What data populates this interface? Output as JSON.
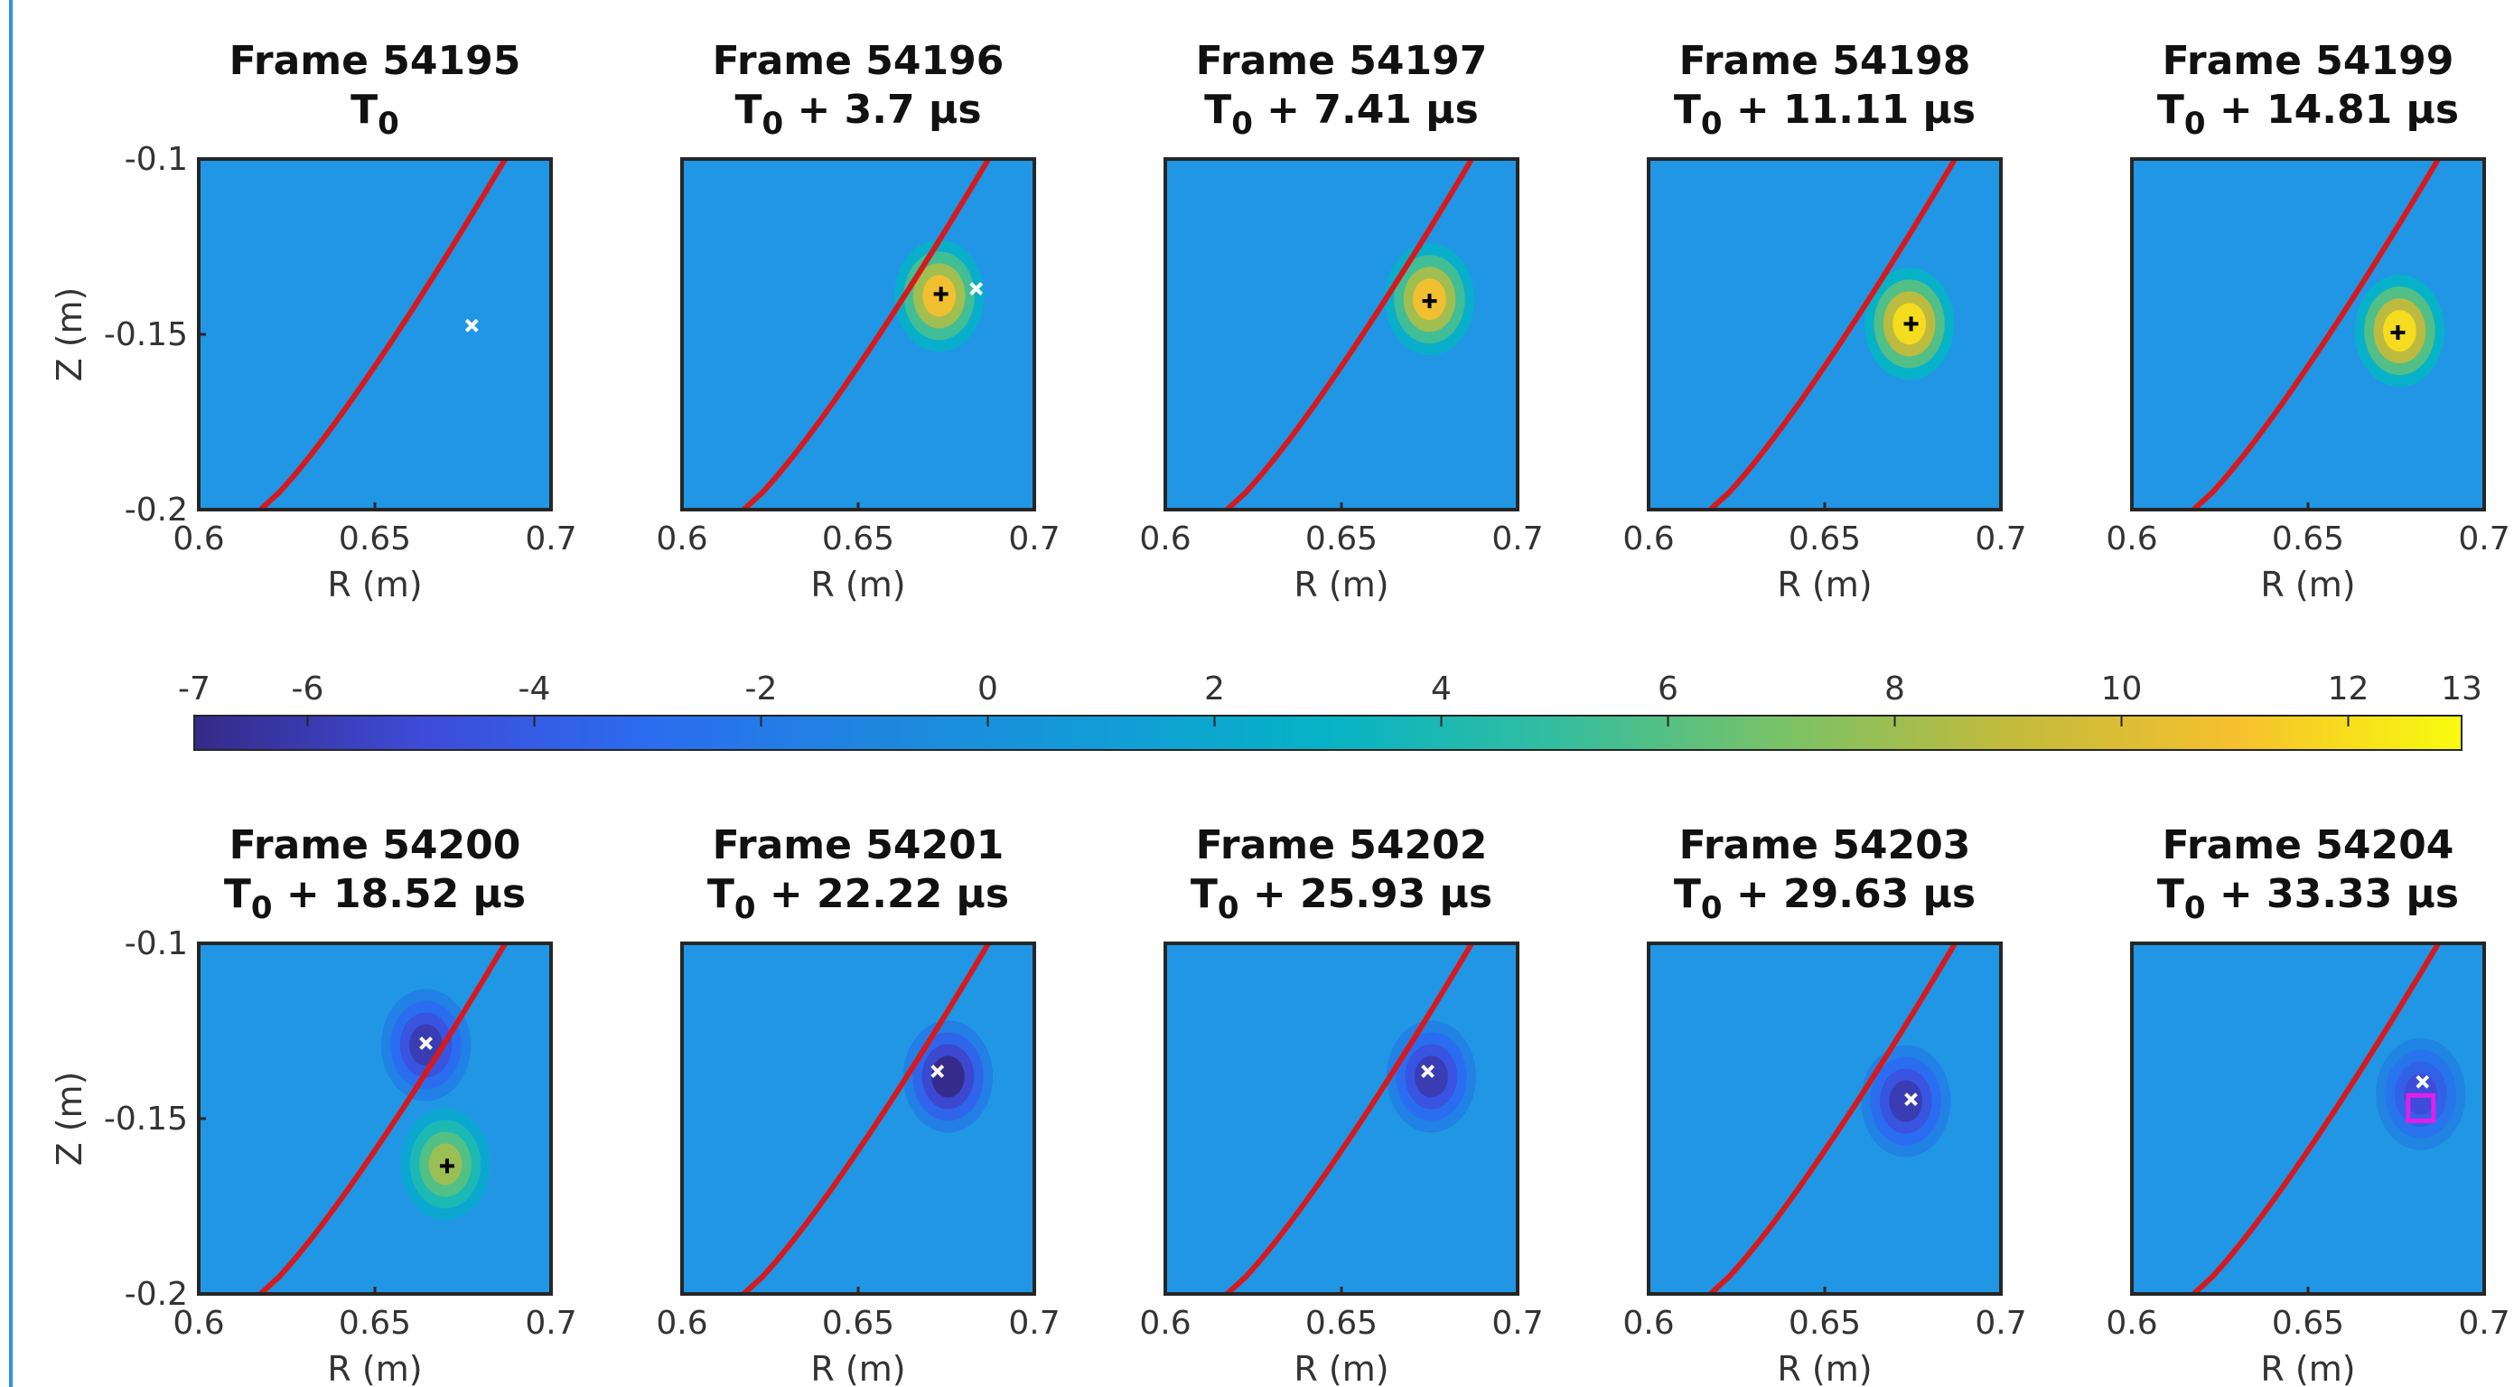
{
  "colors": {
    "background_level": "#2196e5",
    "separatrix": "#d7191c",
    "marker_white": "#ffffff",
    "marker_black": "#000000",
    "box_magenta": "#e020e8",
    "axes_frame": "#262626"
  },
  "colorbar": {
    "min": -7,
    "max": 13,
    "ticks": [
      "-7",
      "-6",
      "-4",
      "-2",
      "0",
      "2",
      "4",
      "6",
      "8",
      "10",
      "12",
      "13"
    ],
    "colormap": "parula"
  },
  "chart_data": [
    {
      "type": "heatmap",
      "frame": "Frame 54195",
      "time": "T0",
      "xlabel": "R (m)",
      "ylabel": "Z (m)",
      "xlim": [
        0.6,
        0.7
      ],
      "ylim": [
        -0.2,
        -0.1
      ],
      "xticks": [
        "0.6",
        "0.65",
        "0.7"
      ],
      "yticks": [
        "-0.1",
        "-0.15",
        "-0.2"
      ],
      "blobs": [],
      "white_marker": [
        0.6775,
        -0.1475
      ],
      "black_marker": null
    },
    {
      "type": "heatmap",
      "frame": "Frame 54196",
      "time": "T0 + 3.7 μs",
      "xlabel": "R (m)",
      "ylabel": "",
      "xlim": [
        0.6,
        0.7
      ],
      "ylim": [
        -0.2,
        -0.1
      ],
      "xticks": [
        "0.6",
        "0.65",
        "0.7"
      ],
      "yticks": [],
      "blobs": [
        {
          "r": 0.673,
          "z": -0.139,
          "peak": 11
        }
      ],
      "white_marker": [
        0.6835,
        -0.137
      ],
      "black_marker": [
        0.6735,
        -0.1385
      ]
    },
    {
      "type": "heatmap",
      "frame": "Frame 54197",
      "time": "T0 + 7.41 μs",
      "xlabel": "R (m)",
      "ylabel": "",
      "xlim": [
        0.6,
        0.7
      ],
      "ylim": [
        -0.2,
        -0.1
      ],
      "xticks": [
        "0.6",
        "0.65",
        "0.7"
      ],
      "yticks": [],
      "blobs": [
        {
          "r": 0.675,
          "z": -0.14,
          "peak": 11
        }
      ],
      "white_marker": null,
      "black_marker": [
        0.675,
        -0.1405
      ]
    },
    {
      "type": "heatmap",
      "frame": "Frame 54198",
      "time": "T0 + 11.11 μs",
      "xlabel": "R (m)",
      "ylabel": "",
      "xlim": [
        0.6,
        0.7
      ],
      "ylim": [
        -0.2,
        -0.1
      ],
      "xticks": [
        "0.6",
        "0.65",
        "0.7"
      ],
      "yticks": [],
      "blobs": [
        {
          "r": 0.674,
          "z": -0.147,
          "peak": 12
        }
      ],
      "white_marker": null,
      "black_marker": [
        0.6745,
        -0.147
      ]
    },
    {
      "type": "heatmap",
      "frame": "Frame 54199",
      "time": "T0 + 14.81 μs",
      "xlabel": "R (m)",
      "ylabel": "",
      "xlim": [
        0.6,
        0.7
      ],
      "ylim": [
        -0.2,
        -0.1
      ],
      "xticks": [
        "0.6",
        "0.65",
        "0.7"
      ],
      "yticks": [],
      "blobs": [
        {
          "r": 0.676,
          "z": -0.149,
          "peak": 12
        }
      ],
      "white_marker": null,
      "black_marker": [
        0.6755,
        -0.1495
      ]
    },
    {
      "type": "heatmap",
      "frame": "Frame 54200",
      "time": "T0 + 18.52 μs",
      "xlabel": "R (m)",
      "ylabel": "Z (m)",
      "xlim": [
        0.6,
        0.7
      ],
      "ylim": [
        -0.2,
        -0.1
      ],
      "xticks": [
        "0.6",
        "0.65",
        "0.7"
      ],
      "yticks": [
        "-0.1",
        "-0.15",
        "-0.2"
      ],
      "blobs": [
        {
          "r": 0.67,
          "z": -0.163,
          "peak": 8
        },
        {
          "r": 0.6645,
          "z": -0.129,
          "peak": -6
        }
      ],
      "white_marker": [
        0.6645,
        -0.1285
      ],
      "black_marker": [
        0.6705,
        -0.1635
      ]
    },
    {
      "type": "heatmap",
      "frame": "Frame 54201",
      "time": "T0 + 22.22 μs",
      "xlabel": "R (m)",
      "ylabel": "",
      "xlim": [
        0.6,
        0.7
      ],
      "ylim": [
        -0.2,
        -0.1
      ],
      "xticks": [
        "0.6",
        "0.65",
        "0.7"
      ],
      "yticks": [],
      "blobs": [
        {
          "r": 0.6755,
          "z": -0.138,
          "peak": -7
        }
      ],
      "white_marker": [
        0.6725,
        -0.1365
      ],
      "black_marker": null
    },
    {
      "type": "heatmap",
      "frame": "Frame 54202",
      "time": "T0 + 25.93 μs",
      "xlabel": "R (m)",
      "ylabel": "",
      "xlim": [
        0.6,
        0.7
      ],
      "ylim": [
        -0.2,
        -0.1
      ],
      "xticks": [
        "0.6",
        "0.65",
        "0.7"
      ],
      "yticks": [],
      "blobs": [
        {
          "r": 0.6755,
          "z": -0.138,
          "peak": -6
        }
      ],
      "white_marker": [
        0.6745,
        -0.1365
      ],
      "black_marker": null
    },
    {
      "type": "heatmap",
      "frame": "Frame 54203",
      "time": "T0 + 29.63 μs",
      "xlabel": "R (m)",
      "ylabel": "",
      "xlim": [
        0.6,
        0.7
      ],
      "ylim": [
        -0.2,
        -0.1
      ],
      "xticks": [
        "0.6",
        "0.65",
        "0.7"
      ],
      "yticks": [],
      "blobs": [
        {
          "r": 0.673,
          "z": -0.145,
          "peak": -6
        }
      ],
      "white_marker": [
        0.6745,
        -0.1445
      ],
      "black_marker": null
    },
    {
      "type": "heatmap",
      "frame": "Frame 54204",
      "time": "T0 + 33.33 μs",
      "xlabel": "R (m)",
      "ylabel": "",
      "xlim": [
        0.6,
        0.7
      ],
      "ylim": [
        -0.2,
        -0.1
      ],
      "xticks": [
        "0.6",
        "0.65",
        "0.7"
      ],
      "yticks": [],
      "blobs": [
        {
          "r": 0.682,
          "z": -0.143,
          "peak": -5
        }
      ],
      "white_marker": [
        0.6825,
        -0.1395
      ],
      "black_marker": null,
      "box": [
        0.682,
        -0.147
      ]
    }
  ]
}
